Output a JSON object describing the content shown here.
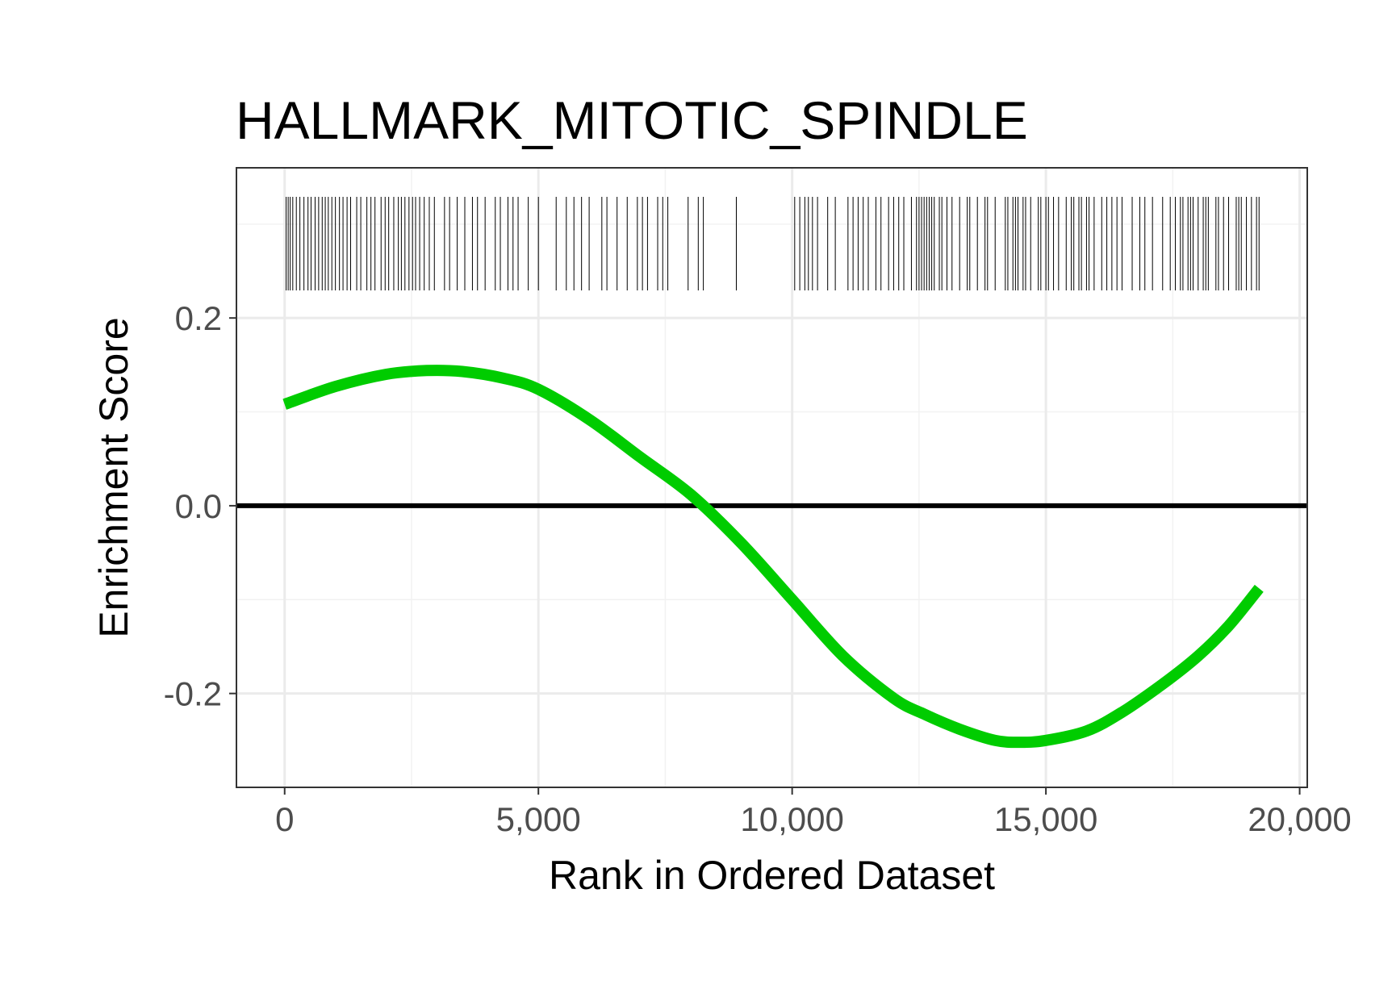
{
  "chart_data": {
    "type": "line",
    "title": "HALLMARK_MITOTIC_SPINDLE",
    "xlabel": "Rank in Ordered Dataset",
    "ylabel": "Enrichment Score",
    "xlim": [
      -950,
      20150
    ],
    "ylim": [
      -0.3,
      0.36
    ],
    "x_ticks": [
      0,
      5000,
      10000,
      15000,
      20000
    ],
    "x_tick_labels": [
      "0",
      "5,000",
      "10,000",
      "15,000",
      "20,000"
    ],
    "y_ticks": [
      -0.2,
      0.0,
      0.2
    ],
    "y_tick_labels": [
      "-0.2",
      "0.0",
      "0.2"
    ],
    "grid": true,
    "zero_line": 0.0,
    "series": [
      {
        "color": "#00cc00",
        "x": [
          0,
          1000,
          2000,
          2800,
          3500,
          4300,
          5000,
          6000,
          7000,
          8000,
          9000,
          10000,
          11000,
          12000,
          12600,
          13300,
          14000,
          14500,
          15000,
          15800,
          16500,
          17300,
          18000,
          18600,
          19200
        ],
        "y": [
          0.108,
          0.127,
          0.14,
          0.144,
          0.143,
          0.136,
          0.124,
          0.092,
          0.052,
          0.012,
          -0.04,
          -0.1,
          -0.16,
          -0.205,
          -0.222,
          -0.238,
          -0.25,
          -0.252,
          -0.25,
          -0.24,
          -0.22,
          -0.19,
          -0.16,
          -0.128,
          -0.088
        ]
      }
    ],
    "gene_hits": [
      30,
      70,
      110,
      160,
      230,
      300,
      380,
      460,
      520,
      600,
      670,
      740,
      800,
      860,
      930,
      1000,
      1080,
      1150,
      1230,
      1300,
      1420,
      1500,
      1620,
      1700,
      1780,
      1900,
      1980,
      2050,
      2150,
      2240,
      2300,
      2370,
      2450,
      2520,
      2580,
      2660,
      2750,
      2850,
      2950,
      3150,
      3250,
      3400,
      3550,
      3700,
      3800,
      3950,
      4150,
      4250,
      4400,
      4500,
      4600,
      4800,
      5000,
      5350,
      5550,
      5700,
      5850,
      6000,
      6250,
      6350,
      6550,
      6750,
      6950,
      7050,
      7150,
      7350,
      7450,
      7550,
      7950,
      8150,
      8250,
      8900,
      10050,
      10150,
      10250,
      10320,
      10400,
      10500,
      10700,
      10850,
      11100,
      11200,
      11300,
      11400,
      11500,
      11650,
      11750,
      11900,
      12000,
      12100,
      12200,
      12350,
      12450,
      12500,
      12550,
      12600,
      12650,
      12700,
      12750,
      12800,
      12900,
      12950,
      13050,
      13150,
      13300,
      13450,
      13500,
      13650,
      13800,
      13850,
      14000,
      14200,
      14250,
      14350,
      14400,
      14450,
      14550,
      14600,
      14700,
      14850,
      14900,
      15000,
      15050,
      15150,
      15250,
      15400,
      15500,
      15550,
      15650,
      15700,
      15800,
      15850,
      15950,
      16100,
      16200,
      16300,
      16400,
      16500,
      16700,
      16850,
      16950,
      17100,
      17300,
      17450,
      17550,
      17650,
      17700,
      17800,
      17850,
      17900,
      18000,
      18100,
      18150,
      18200,
      18350,
      18400,
      18500,
      18600,
      18750,
      18800,
      18850,
      18950,
      19050,
      19150,
      19200
    ]
  }
}
